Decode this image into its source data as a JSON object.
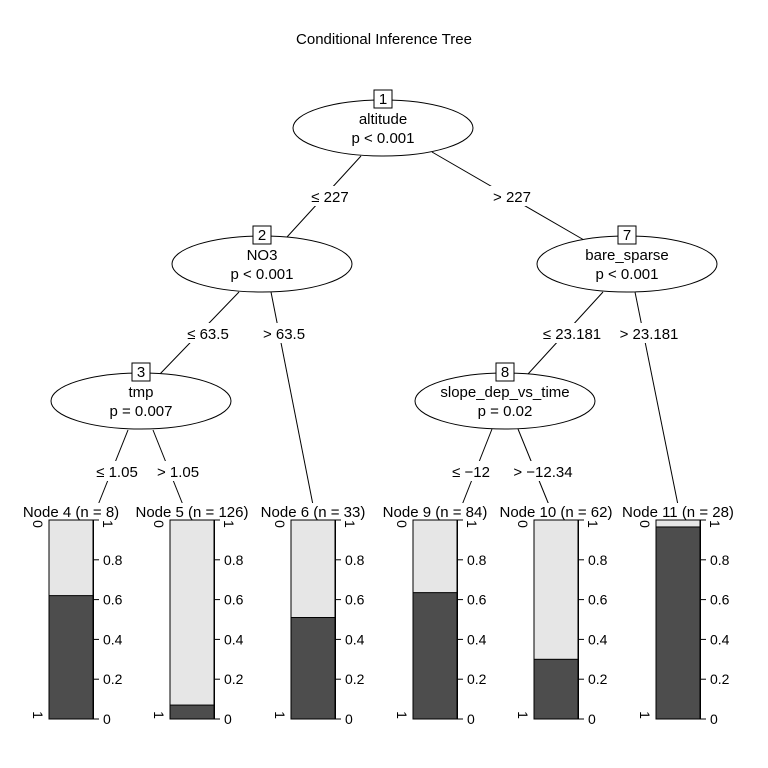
{
  "title": "Conditional Inference Tree",
  "inner_nodes": [
    {
      "id": "1",
      "variable": "altitude",
      "p": "p < 0.001"
    },
    {
      "id": "2",
      "variable": "NO3",
      "p": "p < 0.001"
    },
    {
      "id": "3",
      "variable": "tmp",
      "p": "p = 0.007"
    },
    {
      "id": "7",
      "variable": "bare_sparse",
      "p": "p < 0.001"
    },
    {
      "id": "8",
      "variable": "slope_dep_vs_time",
      "p": "p = 0.02"
    }
  ],
  "edges": [
    {
      "from": "1",
      "to": "2",
      "label": "≤ 227"
    },
    {
      "from": "1",
      "to": "7",
      "label": "> 227"
    },
    {
      "from": "2",
      "to": "3",
      "label": "≤ 63.5"
    },
    {
      "from": "2",
      "to": "6",
      "label": "> 63.5"
    },
    {
      "from": "3",
      "to": "4",
      "label": "≤ 1.05"
    },
    {
      "from": "3",
      "to": "5",
      "label": "> 1.05"
    },
    {
      "from": "7",
      "to": "8",
      "label": "≤ 23.181"
    },
    {
      "from": "7",
      "to": "11",
      "label": "> 23.181"
    },
    {
      "from": "8",
      "to": "9",
      "label": "≤ −12"
    },
    {
      "from": "8",
      "to": "10",
      "label": "> −12.34"
    }
  ],
  "terminal_nodes": [
    {
      "id": "4",
      "label": "Node 4 (n = 8)",
      "proportion": 0.62
    },
    {
      "id": "5",
      "label": "Node 5 (n = 126)",
      "proportion": 0.07
    },
    {
      "id": "6",
      "label": "Node 6 (n = 33)",
      "proportion": 0.51
    },
    {
      "id": "9",
      "label": "Node 9 (n = 84)",
      "proportion": 0.635
    },
    {
      "id": "10",
      "label": "Node 10 (n = 62)",
      "proportion": 0.3
    },
    {
      "id": "11",
      "label": "Node 11 (n = 28)",
      "proportion": 0.965
    }
  ],
  "bar_axis": {
    "left_top": "0",
    "left_bottom": "1",
    "ticks": [
      "0",
      "0.2",
      "0.4",
      "0.6",
      "0.8",
      "1"
    ],
    "tick_values": [
      0,
      0.2,
      0.4,
      0.6,
      0.8,
      1
    ]
  },
  "colors": {
    "dark": "#4d4d4d",
    "light": "#e6e6e6"
  }
}
